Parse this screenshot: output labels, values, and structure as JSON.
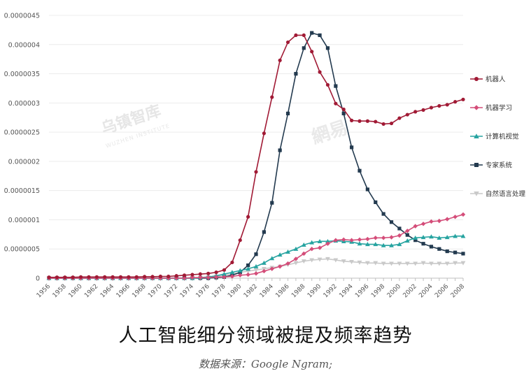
{
  "page": {
    "title": "人工智能细分领域被提及频率趋势",
    "source": "数据来源：Google Ngram;",
    "watermark_brand": "乌镇智库",
    "watermark_sub": "WUZHEN INSTITUTE",
    "watermark_site": "網易"
  },
  "chart_data": {
    "type": "line",
    "x_label_step": 2,
    "ylim": [
      0,
      4.5e-06
    ],
    "y_ticks": [
      "0",
      "0.0000005",
      "0.000001",
      "0.0000015",
      "0.000002",
      "0.0000025",
      "0.000003",
      "0.0000035",
      "0.000004",
      "0.0000045"
    ],
    "x": [
      1956,
      1957,
      1958,
      1959,
      1960,
      1961,
      1962,
      1963,
      1964,
      1965,
      1966,
      1967,
      1968,
      1969,
      1970,
      1971,
      1972,
      1973,
      1974,
      1975,
      1976,
      1977,
      1978,
      1979,
      1980,
      1981,
      1982,
      1983,
      1984,
      1985,
      1986,
      1987,
      1988,
      1989,
      1990,
      1991,
      1992,
      1993,
      1994,
      1995,
      1996,
      1997,
      1998,
      1999,
      2000,
      2001,
      2002,
      2003,
      2004,
      2005,
      2006,
      2007,
      2008
    ],
    "legend_position": "right",
    "grid": true,
    "series": [
      {
        "name": "机器人",
        "color": "#a11a35",
        "marker": "circle",
        "values": [
          1.5e-08,
          1.5e-08,
          1.5e-08,
          1.5e-08,
          2e-08,
          2e-08,
          2e-08,
          2e-08,
          2e-08,
          2e-08,
          2e-08,
          2e-08,
          2.5e-08,
          2.5e-08,
          3e-08,
          3e-08,
          4e-08,
          5e-08,
          6e-08,
          7e-08,
          8e-08,
          1e-07,
          1.4e-07,
          2.7e-07,
          6.5e-07,
          1.05e-06,
          1.82e-06,
          2.48e-06,
          3.1e-06,
          3.73e-06,
          4.04e-06,
          4.16e-06,
          4.16e-06,
          3.88e-06,
          3.53e-06,
          3.31e-06,
          2.99e-06,
          2.89e-06,
          2.7e-06,
          2.69e-06,
          2.69e-06,
          2.68e-06,
          2.64e-06,
          2.65e-06,
          2.74e-06,
          2.8e-06,
          2.85e-06,
          2.88e-06,
          2.92e-06,
          2.95e-06,
          2.97e-06,
          3.02e-06,
          3.06e-06
        ]
      },
      {
        "name": "机器学习",
        "color": "#d44d79",
        "marker": "diamond",
        "values": [
          0,
          0,
          0,
          0,
          0,
          0,
          0,
          0,
          0,
          0,
          0,
          0,
          0,
          0,
          0,
          0,
          0,
          0,
          1e-08,
          1e-08,
          1e-08,
          2e-08,
          2e-08,
          3e-08,
          5e-08,
          6e-08,
          8e-08,
          1.2e-07,
          1.6e-07,
          2e-07,
          2.5e-07,
          3.3e-07,
          4.2e-07,
          5e-07,
          5.2e-07,
          5.9e-07,
          6.5e-07,
          6.6e-07,
          6.5e-07,
          6.6e-07,
          6.7e-07,
          6.9e-07,
          6.9e-07,
          7e-07,
          7.3e-07,
          8.1e-07,
          8.9e-07,
          9.3e-07,
          9.7e-07,
          9.8e-07,
          1.01e-06,
          1.05e-06,
          1.09e-06
        ]
      },
      {
        "name": "计算机视觉",
        "color": "#26a3a0",
        "marker": "triangle",
        "values": [
          0,
          0,
          0,
          0,
          0,
          0,
          0,
          0,
          0,
          0,
          0,
          0,
          0,
          0,
          0,
          0,
          0,
          0,
          0,
          1e-08,
          2e-08,
          4e-08,
          7e-08,
          1e-07,
          1.3e-07,
          1.6e-07,
          2e-07,
          2.6e-07,
          3.4e-07,
          4e-07,
          4.5e-07,
          5e-07,
          5.7e-07,
          6.1e-07,
          6.3e-07,
          6.3e-07,
          6.4e-07,
          6.3e-07,
          6.2e-07,
          5.9e-07,
          5.8e-07,
          5.8e-07,
          5.6e-07,
          5.6e-07,
          5.8e-07,
          6.4e-07,
          6.9e-07,
          7e-07,
          7.1e-07,
          6.9e-07,
          7e-07,
          7.2e-07,
          7.2e-07
        ]
      },
      {
        "name": "专家系统",
        "color": "#233a4f",
        "marker": "square",
        "values": [
          0,
          0,
          0,
          0,
          0,
          0,
          0,
          0,
          0,
          0,
          0,
          0,
          0,
          0,
          0,
          0,
          0,
          0,
          0,
          0,
          0,
          1e-08,
          2e-08,
          5e-08,
          1e-07,
          2.2e-07,
          4.1e-07,
          7.9e-07,
          1.29e-06,
          2.19e-06,
          2.82e-06,
          3.5e-06,
          3.94e-06,
          4.2e-06,
          4.16e-06,
          3.94e-06,
          3.29e-06,
          2.82e-06,
          2.24e-06,
          1.84e-06,
          1.52e-06,
          1.3e-06,
          1.1e-06,
          9.6e-07,
          8.5e-07,
          7.4e-07,
          6.5e-07,
          5.9e-07,
          5.4e-07,
          5e-07,
          4.6e-07,
          4.4e-07,
          4.2e-07
        ]
      },
      {
        "name": "自然语言处理",
        "color": "#c9c9c9",
        "marker": "triangle-down",
        "values": [
          0,
          0,
          0,
          0,
          0,
          0,
          0,
          0,
          0,
          0,
          0,
          0,
          0,
          0,
          0,
          0,
          0,
          0,
          0,
          1e-08,
          2e-08,
          3e-08,
          5e-08,
          7e-08,
          1e-07,
          1.2e-07,
          1.4e-07,
          1.6e-07,
          1.8e-07,
          2e-07,
          2.3e-07,
          2.6e-07,
          2.9e-07,
          3.1e-07,
          3.2e-07,
          3.3e-07,
          3.1e-07,
          2.9e-07,
          2.8e-07,
          2.7e-07,
          2.6e-07,
          2.6e-07,
          2.5e-07,
          2.5e-07,
          2.5e-07,
          2.5e-07,
          2.5e-07,
          2.6e-07,
          2.5e-07,
          2.5e-07,
          2.5e-07,
          2.6e-07,
          2.6e-07
        ]
      }
    ]
  }
}
